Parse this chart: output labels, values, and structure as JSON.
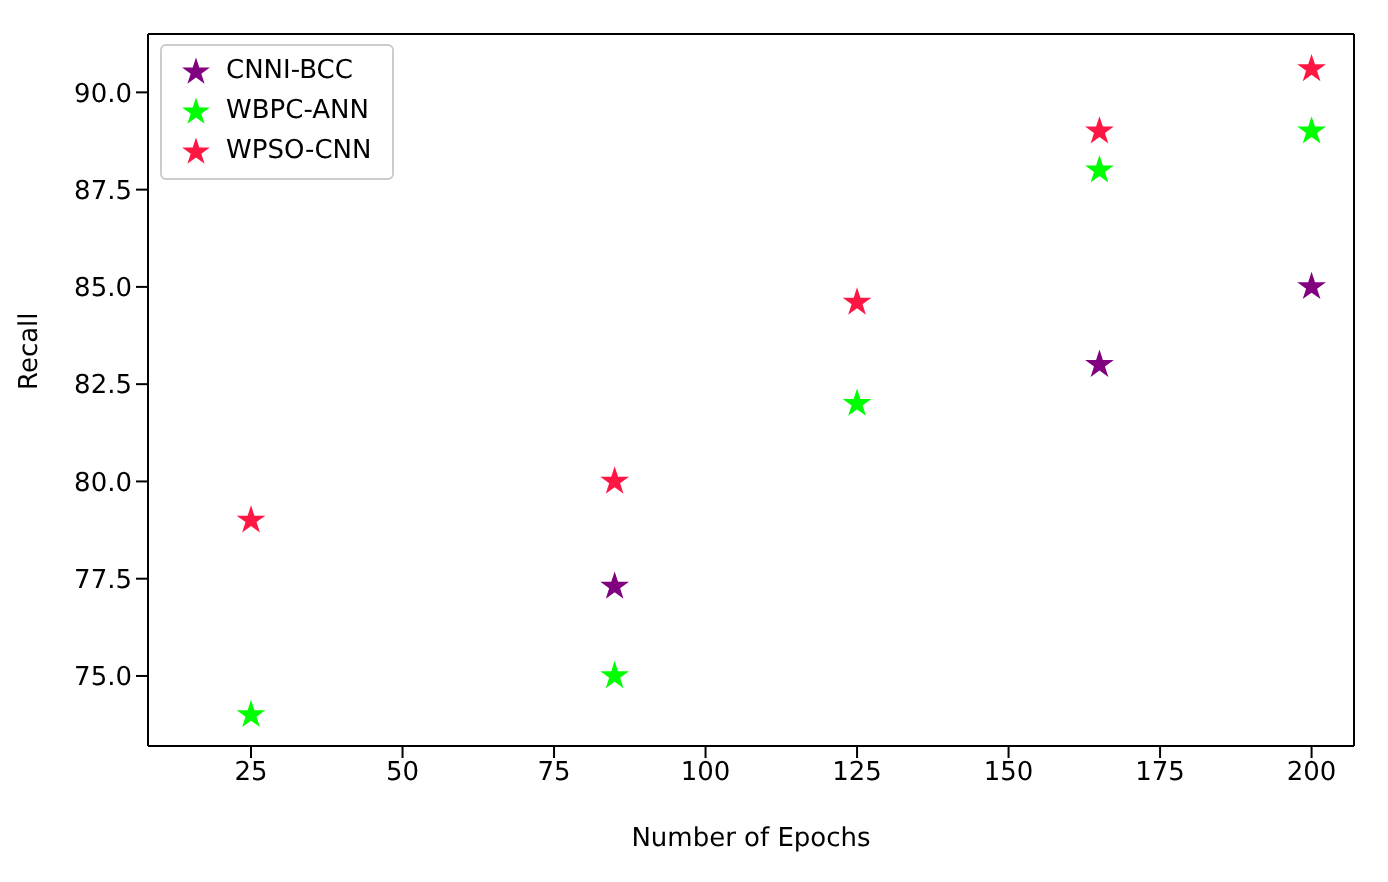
{
  "chart_data": {
    "type": "scatter",
    "xlabel": "Number of Epochs",
    "ylabel": "Recall",
    "x": [
      25,
      85,
      125,
      165,
      200
    ],
    "series": [
      {
        "name": "CNNI-BCC",
        "color": "#800080",
        "values": [
          null,
          77.3,
          null,
          83.0,
          85.0
        ]
      },
      {
        "name": "WBPC-ANN",
        "color": "#00ff00",
        "values": [
          74.0,
          75.0,
          82.0,
          88.0,
          89.0
        ]
      },
      {
        "name": "WPSO-CNN",
        "color": "#ff1744",
        "values": [
          79.0,
          80.0,
          84.6,
          89.0,
          90.6
        ]
      }
    ],
    "xlim": [
      8,
      207
    ],
    "xticks": [
      25,
      50,
      75,
      100,
      125,
      150,
      175,
      200
    ],
    "ylim": [
      73.2,
      91.5
    ],
    "yticks": [
      {
        "value": 75,
        "label": "75.0"
      },
      {
        "value": 77.5,
        "label": "77.5"
      },
      {
        "value": 80,
        "label": "80.0"
      },
      {
        "value": 82.5,
        "label": "82.5"
      },
      {
        "value": 85,
        "label": "85.0"
      },
      {
        "value": 87.5,
        "label": "87.5"
      },
      {
        "value": 90,
        "label": "90.0"
      }
    ],
    "grid": false,
    "legend": "top left",
    "marker": "star"
  }
}
